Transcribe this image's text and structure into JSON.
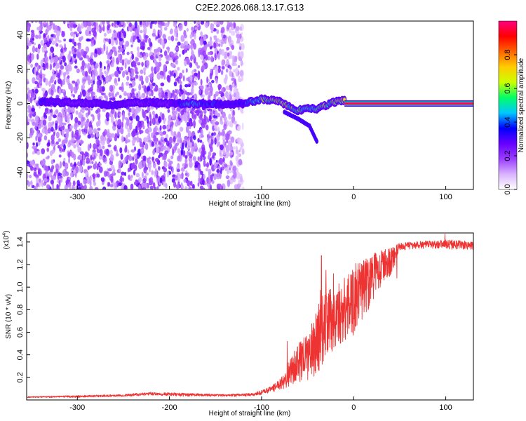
{
  "title": "C2E2.2026.068.13.17.G13",
  "chart_data": [
    {
      "type": "heatmap",
      "name": "spectrogram",
      "xlabel": "Height of straight line (km)",
      "ylabel": "Frequency (Hz)",
      "xlim": [
        -355,
        130
      ],
      "ylim": [
        -50,
        48
      ],
      "xticks": [
        -300,
        -200,
        -100,
        0,
        100
      ],
      "yticks": [
        -40,
        -20,
        0,
        20,
        40
      ],
      "colorbar": {
        "label": "Normalized spectral amplitude",
        "range": [
          0,
          1
        ],
        "ticks": [
          0.0,
          0.2,
          0.4,
          0.6,
          0.8
        ],
        "tick_labels": [
          "0.0",
          "0.2",
          "0.4",
          "0.6",
          "0.8"
        ],
        "colors": [
          "#ffffff",
          "#d9b3ff",
          "#9a3dff",
          "#6600ff",
          "#0000ff",
          "#00c8ff",
          "#00ff66",
          "#ccff00",
          "#ffcc00",
          "#ff6600",
          "#ff0000",
          "#ff0080"
        ]
      },
      "noise_extent_x": [
        -355,
        -120
      ],
      "carrier": {
        "x_start": -10,
        "x_end": 130,
        "frequency": 0,
        "amplitude": 0.97
      },
      "trace": [
        {
          "x": -340,
          "f": 1.5,
          "a": 0.35
        },
        {
          "x": -320,
          "f": 0.5,
          "a": 0.25
        },
        {
          "x": -300,
          "f": 0.5,
          "a": 0.22
        },
        {
          "x": -280,
          "f": 0.0,
          "a": 0.25
        },
        {
          "x": -260,
          "f": -1.0,
          "a": 0.3
        },
        {
          "x": -240,
          "f": 0.5,
          "a": 0.22
        },
        {
          "x": -220,
          "f": 0.5,
          "a": 0.25
        },
        {
          "x": -200,
          "f": 0.0,
          "a": 0.2
        },
        {
          "x": -180,
          "f": 0.0,
          "a": 0.45
        },
        {
          "x": -160,
          "f": 0.0,
          "a": 0.4
        },
        {
          "x": -140,
          "f": -0.5,
          "a": 0.3
        },
        {
          "x": -120,
          "f": 0.0,
          "a": 0.35
        },
        {
          "x": -100,
          "f": 2.5,
          "a": 0.55
        },
        {
          "x": -90,
          "f": 2.0,
          "a": 0.6
        },
        {
          "x": -80,
          "f": 1.0,
          "a": 0.65
        },
        {
          "x": -70,
          "f": -2.0,
          "a": 0.6
        },
        {
          "x": -60,
          "f": -4.0,
          "a": 0.55
        },
        {
          "x": -50,
          "f": -3.0,
          "a": 0.5
        },
        {
          "x": -40,
          "f": -3.0,
          "a": 0.55
        },
        {
          "x": -30,
          "f": -1.0,
          "a": 0.55
        },
        {
          "x": -20,
          "f": 1.0,
          "a": 0.6
        },
        {
          "x": -10,
          "f": 2.0,
          "a": 0.7
        }
      ],
      "trace_tail": [
        {
          "x": -75,
          "f": -5.0,
          "a": 0.3
        },
        {
          "x": -60,
          "f": -9.0,
          "a": 0.3
        },
        {
          "x": -48,
          "f": -13.0,
          "a": 0.3
        },
        {
          "x": -40,
          "f": -22.0,
          "a": 0.2
        }
      ]
    },
    {
      "type": "line",
      "name": "snr",
      "xlabel": "Height of straight line (km)",
      "ylabel": "SNR (10 * v/v)",
      "y_multiplier_label": "(x10",
      "y_multiplier_exp": "4",
      "xlim": [
        -355,
        130
      ],
      "ylim": [
        0,
        1.48
      ],
      "xticks": [
        -300,
        -200,
        -100,
        0,
        100
      ],
      "yticks": [
        0.2,
        0.4,
        0.6,
        0.8,
        1.0,
        1.2,
        1.4
      ],
      "ytick_labels": [
        "0.2",
        "0.4",
        "0.6",
        "0.8",
        "1.0",
        "1.2",
        "1.4"
      ],
      "color": "#ee3333",
      "envelope": {
        "x": [
          -355,
          -300,
          -250,
          -220,
          -180,
          -140,
          -110,
          -95,
          -85,
          -75,
          -70,
          -60,
          -50,
          -45,
          -40,
          -35,
          -30,
          -20,
          -10,
          0,
          10,
          20,
          30,
          40,
          45,
          47,
          50,
          60,
          80,
          100,
          110,
          130
        ],
        "low": [
          0.02,
          0.02,
          0.03,
          0.04,
          0.03,
          0.03,
          0.03,
          0.05,
          0.08,
          0.1,
          0.12,
          0.15,
          0.15,
          0.18,
          0.2,
          0.25,
          0.3,
          0.4,
          0.5,
          0.55,
          0.7,
          0.85,
          1.0,
          1.1,
          1.2,
          1.25,
          1.32,
          1.33,
          1.34,
          1.34,
          1.33,
          1.32
        ],
        "high": [
          0.03,
          0.04,
          0.05,
          0.07,
          0.06,
          0.05,
          0.06,
          0.1,
          0.15,
          0.25,
          0.35,
          0.5,
          0.6,
          0.7,
          0.8,
          1.05,
          1.0,
          0.95,
          1.05,
          1.2,
          1.25,
          1.3,
          1.33,
          1.35,
          1.36,
          1.38,
          1.39,
          1.4,
          1.41,
          1.42,
          1.42,
          1.4
        ]
      },
      "spikes": [
        {
          "x": -72,
          "y": 0.52
        },
        {
          "x": -46,
          "y": 0.57
        },
        {
          "x": -38,
          "y": 0.85
        },
        {
          "x": -35,
          "y": 1.28
        },
        {
          "x": -30,
          "y": 1.15
        },
        {
          "x": -25,
          "y": 0.98
        },
        {
          "x": -22,
          "y": 1.12
        },
        {
          "x": -16,
          "y": 1.03
        },
        {
          "x": -10,
          "y": 1.08
        },
        {
          "x": 47,
          "y": 1.08
        },
        {
          "x": 99,
          "y": 1.47
        }
      ]
    }
  ]
}
